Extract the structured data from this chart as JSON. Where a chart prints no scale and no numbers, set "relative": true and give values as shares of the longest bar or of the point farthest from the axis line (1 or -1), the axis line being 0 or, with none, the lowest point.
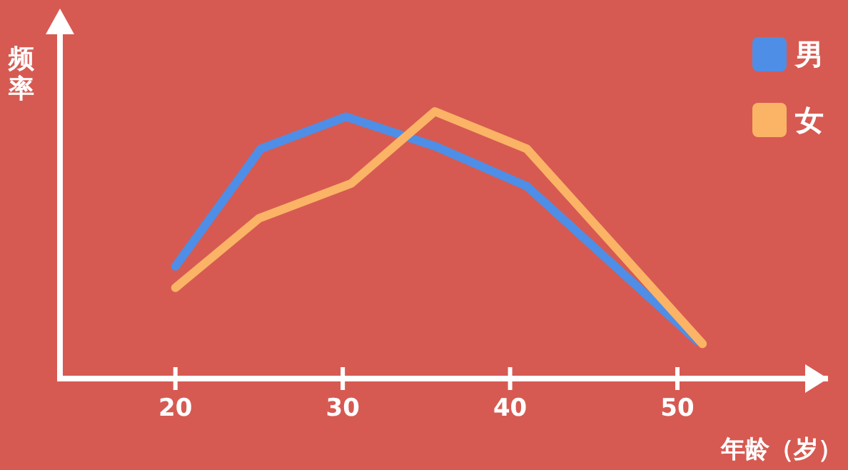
{
  "chart_data": {
    "type": "line",
    "relative": true,
    "ylabel": "频率",
    "xlabel": "年龄（岁）",
    "xlim": [
      13.1,
      59
    ],
    "xticks": [
      20,
      30,
      40,
      50
    ],
    "legend": "top right",
    "grid": false,
    "series": [
      {
        "name": "男",
        "color": "#4f8ee6",
        "x": [
          20,
          25.1,
          30.2,
          35.5,
          41,
          51.2
        ],
        "values": [
          0.42,
          0.86,
          0.98,
          0.87,
          0.72,
          0.14
        ]
      },
      {
        "name": "女",
        "color": "#fbb366",
        "x": [
          20,
          25,
          30.5,
          35.5,
          41,
          51.5
        ],
        "values": [
          0.34,
          0.6,
          0.73,
          1,
          0.86,
          0.13
        ]
      }
    ]
  }
}
